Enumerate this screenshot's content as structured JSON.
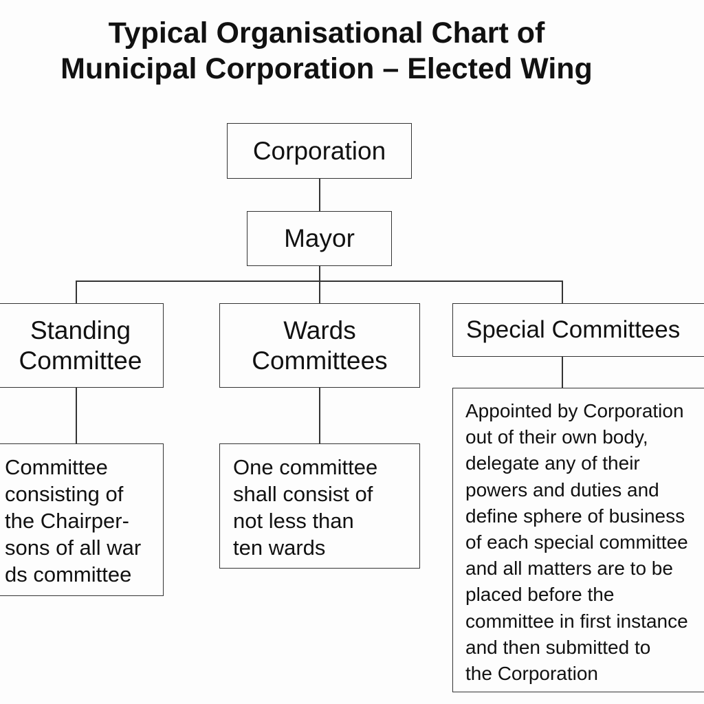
{
  "title": {
    "line1": "Typical Organisational Chart of",
    "line2": "Municipal Corporation – Elected Wing"
  },
  "nodes": {
    "corporation": "Corporation",
    "mayor": "Mayor",
    "standing_committee": "Standing\nCommittee",
    "wards_committees": "Wards\nCommittees",
    "special_committees": "Special Committees"
  },
  "descriptions": {
    "standing_committee": "Committee\nconsisting of\nthe Chairper-\nsons of all war\nds committee",
    "wards_committees": "One committee\nshall consist of\nnot less than\nten wards",
    "special_committees": "Appointed by Corporation\nout of their own body,\ndelegate any of their\npowers and duties and\ndefine sphere of business\nof each special committee\nand all matters are to be\nplaced before the\ncommittee in first instance\nand then submitted to\nthe Corporation"
  }
}
